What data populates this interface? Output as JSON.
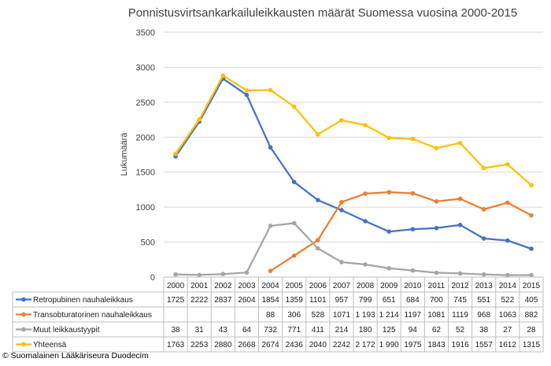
{
  "chart_data": {
    "type": "line",
    "title": "Ponnistusvirtsankarkailuleikkausten määrät Suomessa vuosina 2000-2015",
    "ylabel": "Lukumäärä",
    "xlabel": "",
    "ylim": [
      0,
      3500
    ],
    "yticks": [
      "0",
      "500",
      "1000",
      "1500",
      "2000",
      "2500",
      "3000",
      "3500"
    ],
    "grid": true,
    "legend_placement": "data table",
    "categories": [
      "2000",
      "2001",
      "2002",
      "2003",
      "2004",
      "2005",
      "2006",
      "2007",
      "2008",
      "2009",
      "2010",
      "2011",
      "2012",
      "2013",
      "2014",
      "2015"
    ],
    "series": [
      {
        "name": "Retropubinen nauhaleikkaus",
        "color": "#4472C4",
        "values": [
          1725,
          2222,
          2837,
          2604,
          1854,
          1359,
          1101,
          957,
          799,
          651,
          684,
          700,
          745,
          551,
          522,
          405
        ],
        "labels": [
          "1725",
          "2222",
          "2837",
          "2604",
          "1854",
          "1359",
          "1101",
          "957",
          "799",
          "651",
          "684",
          "700",
          "745",
          "551",
          "522",
          "405"
        ]
      },
      {
        "name": "Transobturatorinen nauhaleikkaus",
        "color": "#ED7D31",
        "values": [
          null,
          null,
          null,
          null,
          88,
          306,
          528,
          1071,
          1193,
          1214,
          1197,
          1081,
          1119,
          968,
          1063,
          882
        ],
        "labels": [
          "",
          "",
          "",
          "",
          "88",
          "306",
          "528",
          "1071",
          "1 193",
          "1 214",
          "1197",
          "1081",
          "1119",
          "968",
          "1063",
          "882"
        ]
      },
      {
        "name": "Muut leikkaustyypit",
        "color": "#A5A5A5",
        "values": [
          38,
          31,
          43,
          64,
          732,
          771,
          411,
          214,
          180,
          125,
          94,
          62,
          52,
          38,
          27,
          28
        ],
        "labels": [
          "38",
          "31",
          "43",
          "64",
          "732",
          "771",
          "411",
          "214",
          "180",
          "125",
          "94",
          "62",
          "52",
          "38",
          "27",
          "28"
        ]
      },
      {
        "name": "Yhteensä",
        "color": "#FFC000",
        "values": [
          1763,
          2253,
          2880,
          2668,
          2674,
          2436,
          2040,
          2242,
          2172,
          1990,
          1975,
          1843,
          1916,
          1557,
          1612,
          1315
        ],
        "labels": [
          "1763",
          "2253",
          "2880",
          "2668",
          "2674",
          "2436",
          "2040",
          "2242",
          "2 172",
          "1 990",
          "1975",
          "1843",
          "1916",
          "1557",
          "1612",
          "1315"
        ]
      }
    ]
  },
  "footer": {
    "copyright": "© Suomalainen Lääkäriseura Duodecim"
  }
}
